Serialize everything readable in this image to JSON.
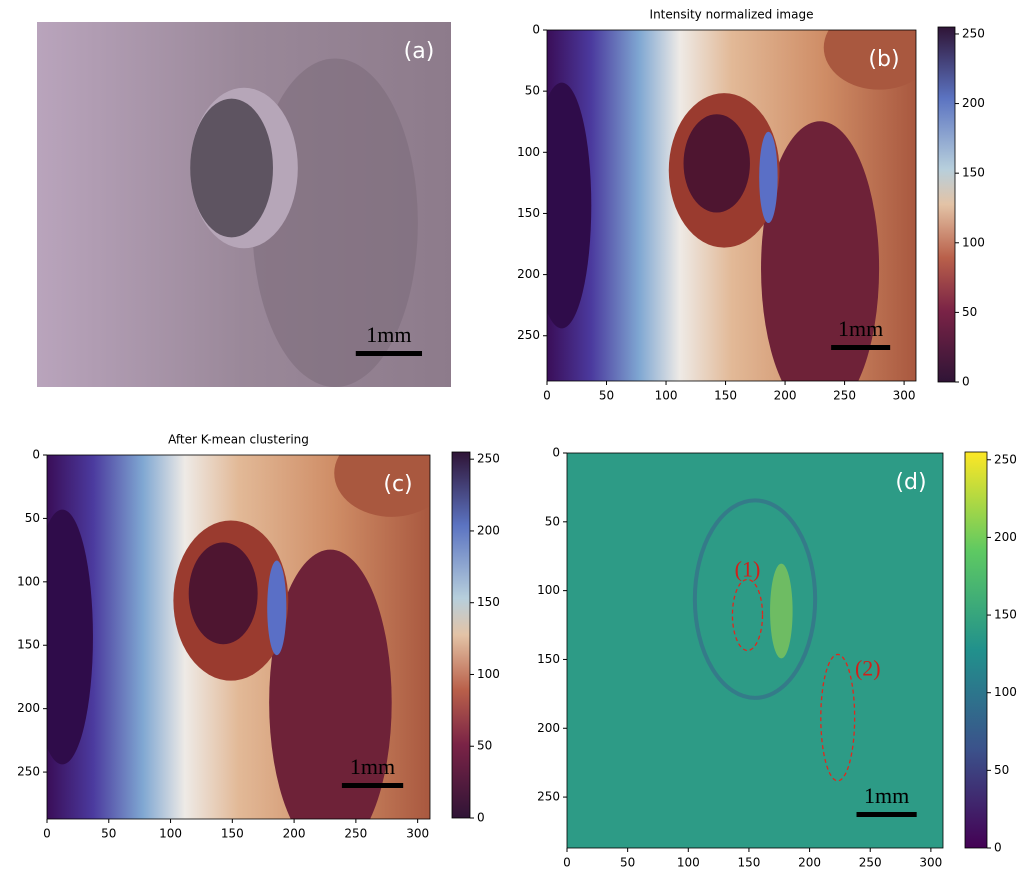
{
  "chart_data": [
    {
      "type": "image",
      "panel_label": "(a)",
      "scale_bar": "1mm"
    },
    {
      "type": "heatmap",
      "panel_label": "(b)",
      "title": "Intensity normalized image",
      "colormap": "twilight_shifted",
      "xlim": [
        0,
        310
      ],
      "ylim": [
        0,
        287
      ],
      "xticks": [
        0,
        50,
        100,
        150,
        200,
        250,
        300
      ],
      "yticks": [
        0,
        50,
        100,
        150,
        200,
        250
      ],
      "clim": [
        0,
        255
      ],
      "cticks": [
        0,
        50,
        100,
        150,
        200,
        250
      ],
      "scale_bar": "1mm"
    },
    {
      "type": "heatmap",
      "panel_label": "(c)",
      "title": "After K-mean clustering",
      "colormap": "twilight_shifted",
      "xlim": [
        0,
        310
      ],
      "ylim": [
        0,
        287
      ],
      "xticks": [
        0,
        50,
        100,
        150,
        200,
        250,
        300
      ],
      "yticks": [
        0,
        50,
        100,
        150,
        200,
        250
      ],
      "clim": [
        0,
        255
      ],
      "cticks": [
        0,
        50,
        100,
        150,
        200,
        250
      ],
      "scale_bar": "1mm"
    },
    {
      "type": "heatmap",
      "panel_label": "(d)",
      "colormap": "viridis",
      "xlim": [
        0,
        310
      ],
      "ylim": [
        0,
        287
      ],
      "xticks": [
        0,
        50,
        100,
        150,
        200,
        250,
        300
      ],
      "yticks": [
        0,
        50,
        100,
        150,
        200,
        250
      ],
      "clim": [
        0,
        255
      ],
      "cticks": [
        0,
        50,
        100,
        150,
        200,
        250
      ],
      "scale_bar": "1mm",
      "annotations": [
        "(1)",
        "(2)"
      ]
    }
  ]
}
